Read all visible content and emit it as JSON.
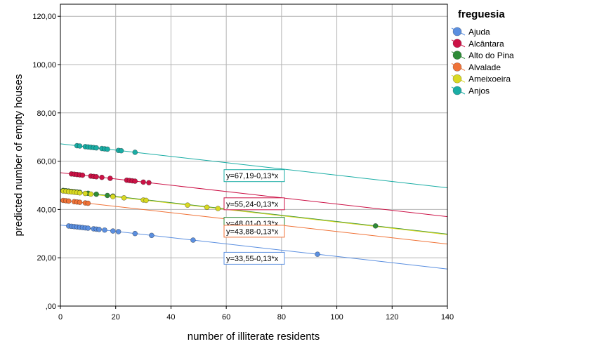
{
  "chart_data": {
    "type": "scatter",
    "title": "",
    "xlabel": "number of illiterate residents",
    "ylabel": "predicted number of empty houses",
    "xlim": [
      0,
      140
    ],
    "ylim": [
      0,
      125
    ],
    "x_ticks": [
      0,
      20,
      40,
      60,
      80,
      100,
      120,
      140
    ],
    "x_tick_labels": [
      "0",
      "20",
      "40",
      "60",
      "80",
      "100",
      "120",
      "140"
    ],
    "y_ticks": [
      0,
      20,
      40,
      60,
      80,
      100,
      120
    ],
    "y_tick_labels": [
      ",00",
      "20,00",
      "40,00",
      "60,00",
      "80,00",
      "100,00",
      "120,00"
    ],
    "grid": true,
    "legend": {
      "title": "freguesia",
      "position": "top-right"
    },
    "series": [
      {
        "name": "Ajuda",
        "color": "#5b8fe0",
        "intercept": 33.55,
        "slope": -0.13,
        "equation": "y=33,55-0,13*x",
        "x": [
          3,
          4,
          5,
          6,
          7,
          8,
          9,
          10,
          12,
          13,
          14,
          16,
          19,
          21,
          27,
          33,
          48,
          93
        ]
      },
      {
        "name": "Alcântara",
        "color": "#cc1246",
        "intercept": 55.24,
        "slope": -0.13,
        "equation": "y=55,24-0,13*x",
        "x": [
          4,
          5,
          6,
          7,
          8,
          11,
          12,
          13,
          15,
          18,
          24,
          25,
          26,
          27,
          30,
          32
        ]
      },
      {
        "name": "Alto do Pina",
        "color": "#2e8b37",
        "intercept": 48.01,
        "slope": -0.13,
        "equation": "y=48,01-0,13*x",
        "x": [
          1,
          2,
          3,
          4,
          5,
          6,
          7,
          10,
          13,
          17,
          19,
          114
        ]
      },
      {
        "name": "Alvalade",
        "color": "#f07338",
        "intercept": 43.88,
        "slope": -0.13,
        "equation": "y=43,88-0,13*x",
        "x": [
          1,
          2,
          3,
          5,
          6,
          7,
          9,
          10
        ]
      },
      {
        "name": "Ameixoeira",
        "color": "#d9d922",
        "intercept": 47.8,
        "slope": -0.13,
        "equation": "",
        "x": [
          1,
          2,
          3,
          4,
          5,
          6,
          7,
          9,
          11,
          19,
          23,
          30,
          31,
          46,
          53,
          57
        ]
      },
      {
        "name": "Anjos",
        "color": "#1aada5",
        "intercept": 67.19,
        "slope": -0.13,
        "equation": "y=67,19-0,13*x",
        "x": [
          6,
          7,
          9,
          10,
          11,
          12,
          13,
          15,
          16,
          17,
          21,
          22,
          27
        ]
      }
    ]
  }
}
